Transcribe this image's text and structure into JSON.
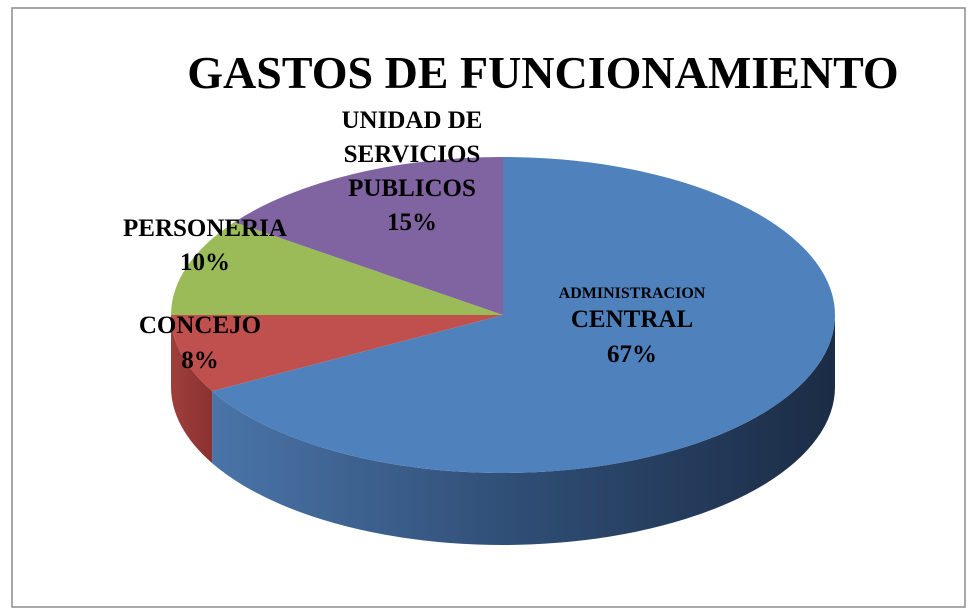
{
  "chart_data": {
    "type": "pie3d",
    "title": "GASTOS DE FUNCIONAMIENTO",
    "categories": [
      "ADMINISTRACION CENTRAL",
      "CONCEJO",
      "PERSONERIA",
      "UNIDAD DE SERVICIOS PUBLICOS"
    ],
    "values": [
      67,
      8,
      10,
      15
    ],
    "value_labels": [
      "67%",
      "8%",
      "10%",
      "15%"
    ],
    "colors": [
      "#4f81bd",
      "#c0504d",
      "#9bbb59",
      "#8064a2"
    ]
  }
}
